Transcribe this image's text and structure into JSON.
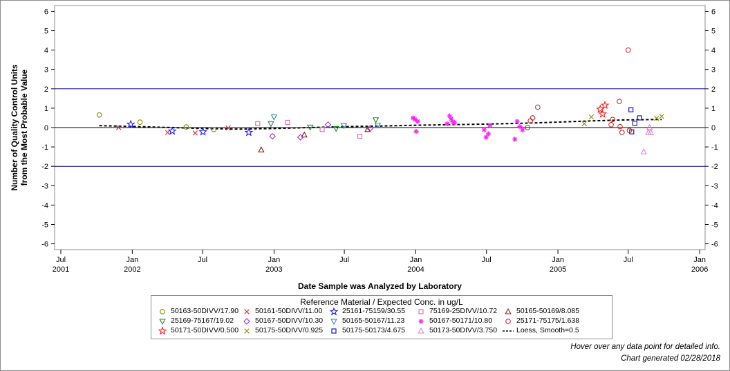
{
  "footer": {
    "hover_note": "Hover over any data point for detailed info.",
    "generated": "Chart generated 02/28/2018"
  },
  "chart_data": {
    "type": "scatter",
    "title": "",
    "xlabel": "Date Sample was Analyzed by Laboratory",
    "ylabel_line1": "Number of Quality Control Units",
    "ylabel_line2": "from the Most Probable Value",
    "xlim": [
      "2001-06-15",
      "2006-01-15"
    ],
    "ylim": [
      -6.3,
      6.3
    ],
    "yticks": [
      -6,
      -5,
      -4,
      -3,
      -2,
      -1,
      0,
      1,
      2,
      3,
      4,
      5,
      6
    ],
    "xticks": [
      {
        "date": "2001-07-01",
        "label": "Jul",
        "year": "2001"
      },
      {
        "date": "2002-01-01",
        "label": "Jan",
        "year": "2002"
      },
      {
        "date": "2002-07-01",
        "label": "Jul",
        "year": ""
      },
      {
        "date": "2003-01-01",
        "label": "Jan",
        "year": "2003"
      },
      {
        "date": "2003-07-01",
        "label": "Jul",
        "year": ""
      },
      {
        "date": "2004-01-01",
        "label": "Jan",
        "year": "2004"
      },
      {
        "date": "2004-07-01",
        "label": "Jul",
        "year": ""
      },
      {
        "date": "2005-01-01",
        "label": "Jan",
        "year": "2005"
      },
      {
        "date": "2005-07-01",
        "label": "Jul",
        "year": ""
      },
      {
        "date": "2006-01-01",
        "label": "Jan",
        "year": "2006"
      }
    ],
    "reference_lines": [
      {
        "y": 2,
        "color": "#00008b"
      },
      {
        "y": -2,
        "color": "#00008b"
      },
      {
        "y": 0,
        "color": "#000000"
      }
    ],
    "legend_title": "Reference Material / Expected Conc. in ug/L",
    "legend_position": "bottom",
    "grid": false,
    "series": [
      {
        "name": "50163-50DIVV/17.90",
        "marker": "circle",
        "color": "#8b8b00",
        "points": [
          [
            "2001-10-08",
            0.65
          ],
          [
            "2002-01-21",
            0.28
          ],
          [
            "2002-05-20",
            0.03
          ],
          [
            "2002-07-30",
            -0.1
          ]
        ]
      },
      {
        "name": "50161-50DIVV/11.00",
        "marker": "x",
        "color": "#e8202a",
        "points": [
          [
            "2001-11-27",
            0.0
          ],
          [
            "2002-04-02",
            -0.25
          ],
          [
            "2002-06-12",
            -0.28
          ],
          [
            "2002-09-05",
            -0.02
          ]
        ]
      },
      {
        "name": "25161-75159/30.55",
        "marker": "star",
        "color": "#1a1aff",
        "points": [
          [
            "2001-12-28",
            0.17
          ],
          [
            "2002-04-14",
            -0.18
          ],
          [
            "2002-07-02",
            -0.22
          ],
          [
            "2002-10-28",
            -0.25
          ]
        ]
      },
      {
        "name": "75169-25DIVV/10.72",
        "marker": "square",
        "color": "#e066a8",
        "points": [
          [
            "2002-11-20",
            0.2
          ],
          [
            "2003-02-05",
            0.27
          ],
          [
            "2003-05-05",
            -0.1
          ],
          [
            "2003-08-10",
            -0.45
          ]
        ]
      },
      {
        "name": "50165-50169/8.085",
        "marker": "triangle",
        "color": "#8b1a1a",
        "points": [
          [
            "2002-11-29",
            -1.15
          ],
          [
            "2003-03-20",
            -0.38
          ],
          [
            "2003-08-30",
            -0.1
          ]
        ]
      },
      {
        "name": "25169-75167/19.02",
        "marker": "tri-down",
        "color": "#228b22",
        "points": [
          [
            "2002-12-24",
            0.2
          ],
          [
            "2003-04-04",
            0.02
          ],
          [
            "2003-06-10",
            -0.05
          ],
          [
            "2003-09-20",
            0.4
          ]
        ]
      },
      {
        "name": "50167-50DIVV/10.30",
        "marker": "diamond",
        "color": "#9932cc",
        "points": [
          [
            "2002-12-28",
            -0.45
          ],
          [
            "2003-03-10",
            -0.5
          ],
          [
            "2003-05-20",
            0.15
          ],
          [
            "2003-09-05",
            -0.05
          ]
        ]
      },
      {
        "name": "50165-50167/11.23",
        "marker": "tri-down",
        "color": "#2a8fa0",
        "points": [
          [
            "2003-01-01",
            0.55
          ],
          [
            "2003-06-30",
            0.1
          ],
          [
            "2003-09-25",
            0.12
          ]
        ]
      },
      {
        "name": "50167-50171/10.80",
        "marker": "asterisk",
        "color": "#ff22ff",
        "points": [
          [
            "2003-12-25",
            0.5
          ],
          [
            "2003-12-30",
            0.42
          ],
          [
            "2004-01-02",
            -0.2
          ],
          [
            "2004-01-06",
            0.32
          ],
          [
            "2004-03-28",
            0.6
          ],
          [
            "2004-04-01",
            0.45
          ],
          [
            "2004-04-05",
            0.3
          ],
          [
            "2004-03-22",
            0.2
          ],
          [
            "2004-04-10",
            0.25
          ],
          [
            "2004-06-25",
            -0.12
          ],
          [
            "2004-06-30",
            -0.5
          ],
          [
            "2004-07-06",
            -0.32
          ],
          [
            "2004-07-10",
            0.12
          ],
          [
            "2004-09-12",
            -0.6
          ],
          [
            "2004-09-18",
            0.32
          ],
          [
            "2004-09-25",
            0.05
          ],
          [
            "2004-10-02",
            -0.12
          ]
        ]
      },
      {
        "name": "25171-75175/1.638",
        "marker": "circle",
        "color": "#cc2a2a",
        "points": [
          [
            "2004-10-15",
            0.0
          ],
          [
            "2004-10-22",
            0.35
          ],
          [
            "2004-10-28",
            0.5
          ],
          [
            "2004-11-10",
            1.05
          ],
          [
            "2005-05-18",
            0.15
          ],
          [
            "2005-05-22",
            0.42
          ],
          [
            "2005-06-08",
            1.35
          ],
          [
            "2005-06-10",
            0.05
          ],
          [
            "2005-06-15",
            -0.25
          ],
          [
            "2005-07-01",
            4.0
          ],
          [
            "2005-07-04",
            -0.15
          ]
        ]
      },
      {
        "name": "50171-50DIVV/0.500",
        "marker": "star",
        "color": "#ff1a1a",
        "points": [
          [
            "2005-04-20",
            0.95
          ],
          [
            "2005-04-26",
            0.7
          ],
          [
            "2005-05-02",
            1.15
          ]
        ]
      },
      {
        "name": "50175-50DIVV/0.925",
        "marker": "x",
        "color": "#8b8b00",
        "points": [
          [
            "2005-03-10",
            0.2
          ],
          [
            "2005-03-28",
            0.55
          ],
          [
            "2005-09-12",
            0.48
          ],
          [
            "2005-09-25",
            0.58
          ]
        ]
      },
      {
        "name": "50175-50173/4.675",
        "marker": "square",
        "color": "#0000cc",
        "points": [
          [
            "2005-07-08",
            0.92
          ],
          [
            "2005-07-10",
            -0.22
          ],
          [
            "2005-07-18",
            0.22
          ],
          [
            "2005-07-30",
            0.5
          ]
        ]
      },
      {
        "name": "50173-50DIVV/3.750",
        "marker": "triangle",
        "color": "#e080c8",
        "points": [
          [
            "2005-08-10",
            -1.25
          ],
          [
            "2005-08-22",
            -0.25
          ],
          [
            "2005-08-28",
            -0.25
          ],
          [
            "2005-08-25",
            0.0
          ]
        ]
      }
    ],
    "loess": {
      "name": "Loess, Smooth=0.5",
      "color": "#000000",
      "points": [
        [
          "2001-10-08",
          0.1
        ],
        [
          "2002-01-15",
          0.05
        ],
        [
          "2002-04-15",
          0.0
        ],
        [
          "2002-07-01",
          -0.05
        ],
        [
          "2002-10-01",
          -0.08
        ],
        [
          "2003-01-01",
          -0.05
        ],
        [
          "2003-04-01",
          0.0
        ],
        [
          "2003-07-01",
          0.05
        ],
        [
          "2003-10-01",
          0.08
        ],
        [
          "2004-01-01",
          0.12
        ],
        [
          "2004-04-01",
          0.15
        ],
        [
          "2004-07-01",
          0.18
        ],
        [
          "2004-10-01",
          0.22
        ],
        [
          "2005-01-01",
          0.28
        ],
        [
          "2005-04-01",
          0.35
        ],
        [
          "2005-07-01",
          0.4
        ],
        [
          "2005-09-25",
          0.42
        ]
      ]
    }
  }
}
